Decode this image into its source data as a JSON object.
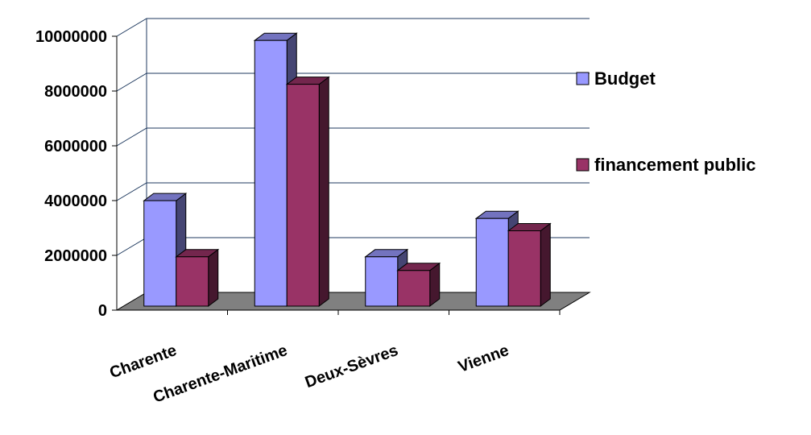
{
  "chart_data": {
    "type": "bar",
    "title": "",
    "xlabel": "",
    "ylabel": "",
    "ylim": [
      0,
      10000000
    ],
    "yticks": [
      0,
      2000000,
      4000000,
      6000000,
      8000000,
      10000000
    ],
    "ytick_labels": [
      "0",
      "2000000",
      "4000000",
      "6000000",
      "8000000",
      "10000000"
    ],
    "categories": [
      "Charente",
      "Charente-Maritime",
      "Deux-Sèvres",
      "Vienne"
    ],
    "series": [
      {
        "name": "Budget",
        "values": [
          3850000,
          9700000,
          1800000,
          3200000
        ],
        "color": "#9999ff"
      },
      {
        "name": "financement public",
        "values": [
          1800000,
          8100000,
          1300000,
          2750000
        ],
        "color": "#993366"
      }
    ],
    "grid": true,
    "legend_position": "right",
    "style": "3d-clustered-column",
    "floor_color": "#808080"
  }
}
